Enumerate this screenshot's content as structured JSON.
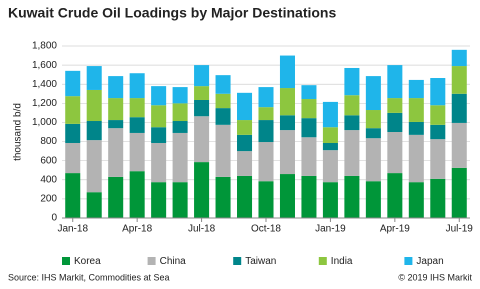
{
  "chart_data": {
    "type": "stacked_bar",
    "title": "Kuwait Crude Oil Loadings by Major Destinations",
    "y_label": "thousand b/d",
    "source": "Source: IHS Markit, Commodities at Sea",
    "copyright": "© 2019 IHS Markit",
    "categories": [
      "Jan-18",
      null,
      null,
      "Apr-18",
      null,
      null,
      "Jul-18",
      null,
      null,
      "Oct-18",
      null,
      null,
      "Jan-19",
      null,
      null,
      "Apr-19",
      null,
      null,
      "Jul-19"
    ],
    "series": [
      {
        "name": "Korea",
        "color": "#009639",
        "values": [
          470,
          270,
          430,
          490,
          375,
          375,
          585,
          430,
          440,
          385,
          460,
          440,
          375,
          440,
          385,
          470,
          375,
          410,
          525
        ]
      },
      {
        "name": "China",
        "color": "#b3b3b3",
        "values": [
          315,
          545,
          510,
          400,
          410,
          515,
          480,
          545,
          260,
          410,
          460,
          405,
          335,
          480,
          450,
          430,
          495,
          415,
          470
        ]
      },
      {
        "name": "Taiwan",
        "color": "#00858a",
        "values": [
          200,
          200,
          85,
          165,
          165,
          125,
          170,
          175,
          170,
          230,
          155,
          200,
          75,
          155,
          105,
          200,
          135,
          150,
          305
        ]
      },
      {
        "name": "India",
        "color": "#8dc63f",
        "values": [
          290,
          325,
          230,
          200,
          230,
          185,
          145,
          150,
          155,
          135,
          285,
          200,
          165,
          210,
          190,
          155,
          250,
          205,
          290
        ]
      },
      {
        "name": "Japan",
        "color": "#1fb5ea",
        "values": [
          265,
          250,
          230,
          260,
          200,
          170,
          220,
          195,
          285,
          210,
          340,
          145,
          265,
          285,
          355,
          345,
          190,
          285,
          170
        ]
      }
    ],
    "ylim": [
      0,
      1800
    ],
    "yticks": [
      0,
      200,
      400,
      600,
      800,
      {
        "value": 1000,
        "label": "1,000"
      },
      {
        "value": 1200,
        "label": "1,200"
      },
      {
        "value": 1400,
        "label": "1,400"
      },
      {
        "value": 1600,
        "label": "1,600"
      },
      {
        "value": 1800,
        "label": "1,800"
      }
    ],
    "grid": true,
    "legend": "bottom"
  }
}
